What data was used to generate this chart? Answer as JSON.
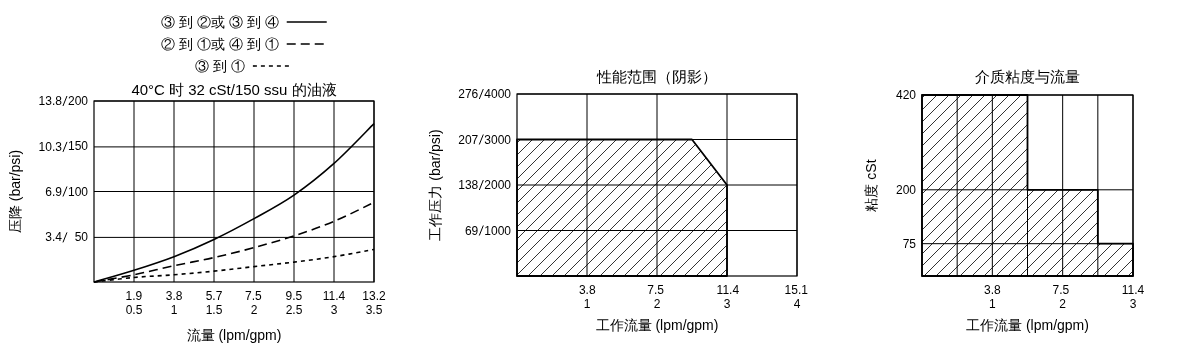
{
  "chart_data": [
    {
      "type": "line",
      "title": "40°C 时 32 cSt/150 ssu 的油液",
      "xlabel": "流量 (lpm/gpm)",
      "ylabel": "压降 (bar/psi)",
      "xlim": [
        0,
        3.5
      ],
      "xticks": [
        0.5,
        1.0,
        1.5,
        2.0,
        2.5,
        3.0,
        3.5
      ],
      "x2lim": [
        0,
        13.25
      ],
      "x2ticks": [
        {
          "value": 1.89,
          "label": "1.9"
        },
        {
          "value": 3.79,
          "label": "3.8"
        },
        {
          "value": 5.68,
          "label": "5.7"
        },
        {
          "value": 7.54,
          "label": "7.5"
        },
        {
          "value": 9.46,
          "label": "9.5"
        },
        {
          "value": 11.36,
          "label": "11.4"
        },
        {
          "value": 13.25,
          "label": "13.2"
        }
      ],
      "ylim": [
        0,
        13.8
      ],
      "yticks": [
        3.4,
        6.9,
        10.3,
        13.8
      ],
      "y2lim": [
        0,
        200
      ],
      "y2ticks": [
        50,
        100,
        150,
        200
      ],
      "grid": true,
      "legend": "top",
      "x": [
        0,
        0.5,
        1.0,
        1.5,
        2.0,
        2.5,
        3.0,
        3.5
      ],
      "series": [
        {
          "name": "③ 到 ②或 ③ 到 ④",
          "color": "#000000",
          "line_style": "solid",
          "axis": "y2",
          "values": [
            0,
            13,
            28,
            47,
            70,
            96,
            131,
            175
          ]
        },
        {
          "name": "② 到 ①或 ④ 到 ①",
          "color": "#000000",
          "line_style": "dashed",
          "axis": "y2",
          "values": [
            0,
            8,
            18,
            27,
            38,
            51,
            67,
            88
          ]
        },
        {
          "name": "③ 到 ①",
          "color": "#000000",
          "line_style": "dotted",
          "axis": "y2",
          "values": [
            0,
            5,
            8,
            12,
            17,
            22,
            28,
            36
          ]
        }
      ]
    },
    {
      "type": "area",
      "title": "性能范围（阴影）",
      "xlabel": "工作流量 (lpm/gpm)",
      "ylabel": "工作压力 (bar/psi)",
      "xlim": [
        0,
        4
      ],
      "xticks": [
        1,
        2,
        3,
        4
      ],
      "x2lim": [
        0,
        15.14
      ],
      "x2ticks": [
        3.8,
        7.5,
        11.4,
        15.1
      ],
      "ylim": [
        0,
        276
      ],
      "yticks": [
        69,
        138,
        207,
        276
      ],
      "y2lim": [
        0,
        4000
      ],
      "y2ticks": [
        1000,
        2000,
        3000,
        4000
      ],
      "grid": true,
      "x": [
        0,
        2.5,
        3
      ],
      "series": [
        {
          "color": "#000000",
          "axis": "y2",
          "values": [
            3000,
            3000,
            2000
          ]
        }
      ]
    },
    {
      "type": "area",
      "title": "介质粘度与流量",
      "xlabel": "工作流量 (lpm/gpm)",
      "ylabel": "粘度 cSt",
      "xlim": [
        0,
        3
      ],
      "xticks": [
        {
          "value": 0.5,
          "label": null
        },
        1,
        {
          "value": 1.5,
          "label": null
        },
        2,
        {
          "value": 2.5,
          "label": null
        },
        3
      ],
      "x2lim": [
        0,
        11.4
      ],
      "x2ticks": [
        3.8,
        7.5,
        11.4
      ],
      "ylim": [
        0,
        420
      ],
      "yticks": [
        75,
        200,
        420
      ],
      "grid": true,
      "x": [
        0,
        1.5,
        1.5,
        2.5,
        2.5,
        3
      ],
      "series": [
        {
          "color": "#000000",
          "values": [
            420,
            420,
            200,
            200,
            75,
            75
          ]
        }
      ]
    }
  ]
}
